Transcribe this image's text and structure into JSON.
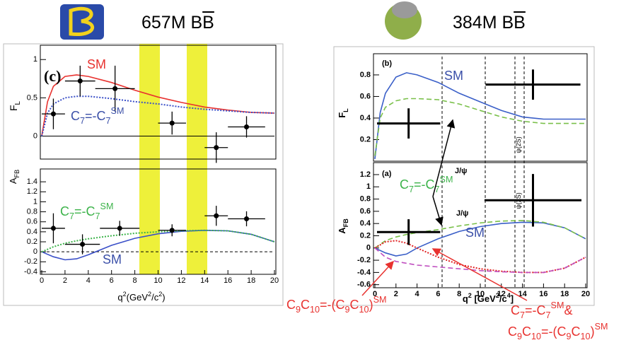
{
  "header": {
    "left": [
      "657M B",
      "B"
    ],
    "right": [
      "384M B",
      "B"
    ]
  },
  "chart_data": [
    {
      "type": "line",
      "label": "(c)",
      "ylabel": [
        "F",
        "L"
      ],
      "xlim": [
        0,
        20
      ],
      "ylim": [
        -0.3,
        1.15
      ],
      "yticks": [
        0,
        0.5,
        1
      ],
      "series": [
        {
          "color": "#e8322f",
          "style": "solid",
          "x": [
            0,
            0.5,
            1,
            2,
            3,
            4,
            6,
            8,
            10,
            12,
            14,
            16,
            18,
            20
          ],
          "values": [
            0,
            0.45,
            0.65,
            0.78,
            0.8,
            0.78,
            0.7,
            0.6,
            0.51,
            0.44,
            0.38,
            0.34,
            0.31,
            0.3
          ]
        },
        {
          "color": "#3a4fc8",
          "style": "dotted",
          "x": [
            0,
            0.5,
            1,
            2,
            3,
            4,
            6,
            8,
            10,
            12,
            14,
            16,
            18,
            20
          ],
          "values": [
            0,
            0.3,
            0.42,
            0.5,
            0.52,
            0.52,
            0.49,
            0.45,
            0.42,
            0.38,
            0.35,
            0.33,
            0.31,
            0.3
          ]
        }
      ],
      "points": {
        "marker": "circle",
        "x": [
          1,
          3.3,
          6.3,
          11.2,
          15,
          17.6
        ],
        "values": [
          0.29,
          0.72,
          0.62,
          0.17,
          -0.15,
          0.12
        ],
        "xerr": [
          1,
          1.3,
          1.7,
          1.2,
          1,
          1.6
        ],
        "yerr": [
          0.2,
          0.2,
          0.3,
          0.15,
          0.2,
          0.14
        ]
      },
      "annotations": [
        {
          "parts": [
            "SM"
          ],
          "color": "#e8322f"
        },
        {
          "parts": [
            "C",
            "7",
            "=-C",
            "7",
            "SM"
          ],
          "color": "#3a4fa8"
        }
      ]
    },
    {
      "type": "line",
      "ylabel": [
        "A",
        "FB"
      ],
      "xlabel": [
        "q",
        "2",
        "(GeV",
        "2",
        "/c",
        "2",
        ")"
      ],
      "xlim": [
        0,
        20
      ],
      "ylim": [
        -0.45,
        1.6
      ],
      "xticks": [
        0,
        2,
        4,
        6,
        8,
        10,
        12,
        14,
        16,
        18,
        20
      ],
      "yticks": [
        -0.4,
        -0.2,
        0,
        0.2,
        0.4,
        0.6,
        0.8,
        1,
        1.2,
        1.4
      ],
      "series": [
        {
          "color": "#3a4fc8",
          "style": "solid",
          "x": [
            0,
            1,
            2,
            3,
            4,
            6,
            8,
            10,
            12,
            14,
            16,
            18,
            20
          ],
          "values": [
            0,
            -0.1,
            -0.16,
            -0.14,
            -0.06,
            0.13,
            0.27,
            0.36,
            0.41,
            0.43,
            0.42,
            0.35,
            0.2
          ]
        },
        {
          "color": "#3cb34a",
          "style": "dotted",
          "x": [
            0,
            1,
            2,
            3,
            4,
            6,
            8,
            10,
            12,
            14,
            16,
            18,
            20
          ],
          "values": [
            0,
            0.1,
            0.17,
            0.22,
            0.26,
            0.32,
            0.37,
            0.4,
            0.42,
            0.43,
            0.42,
            0.35,
            0.2
          ]
        }
      ],
      "points": {
        "marker": "circle",
        "x": [
          1,
          3.5,
          6.7,
          11.2,
          15,
          17.6
        ],
        "values": [
          0.47,
          0.15,
          0.47,
          0.43,
          0.72,
          0.66
        ],
        "xerr": [
          1,
          1.5,
          1.7,
          1.2,
          1,
          1.6
        ],
        "yerr": [
          0.3,
          0.2,
          0.15,
          0.12,
          0.2,
          0.15
        ]
      },
      "annotations": [
        {
          "parts": [
            "C",
            "7",
            "=-C",
            "7",
            "SM"
          ],
          "color": "#3cb34a"
        },
        {
          "parts": [
            "SM"
          ],
          "color": "#3a4fa8"
        }
      ]
    },
    {
      "type": "line",
      "label": "(b)",
      "ylabel": [
        "F",
        "L"
      ],
      "xlim": [
        0,
        20
      ],
      "ylim": [
        0,
        0.97
      ],
      "yticks": [
        0.2,
        0.4,
        0.6,
        0.8
      ],
      "series": [
        {
          "color": "#3a5fc8",
          "style": "solid",
          "x": [
            0,
            0.5,
            1,
            2,
            3,
            4,
            6,
            8,
            10,
            12,
            14,
            16,
            18,
            20
          ],
          "values": [
            0.02,
            0.45,
            0.63,
            0.78,
            0.82,
            0.8,
            0.73,
            0.63,
            0.55,
            0.47,
            0.41,
            0.39,
            0.39,
            0.39
          ]
        },
        {
          "color": "#7ac04a",
          "style": "dashed",
          "x": [
            0,
            0.5,
            1,
            2,
            3,
            4,
            6,
            8,
            10,
            12,
            14,
            16,
            18,
            20
          ],
          "values": [
            0.05,
            0.4,
            0.5,
            0.56,
            0.58,
            0.58,
            0.57,
            0.53,
            0.47,
            0.41,
            0.37,
            0.35,
            0.35,
            0.35
          ]
        }
      ],
      "points": {
        "marker": "none",
        "x": [
          3.2,
          15
        ],
        "values": [
          0.35,
          0.71
        ],
        "xerr": [
          3,
          4.5
        ],
        "yerr": [
          0.14,
          0.14
        ]
      },
      "annotations": [
        {
          "parts": [
            "SM"
          ],
          "color": "#3a4fa8"
        },
        {
          "parts": [
            "J/ψ"
          ],
          "color": "#000000"
        },
        {
          "parts": [
            "ψ(2S)"
          ],
          "color": "#000000"
        }
      ]
    },
    {
      "type": "line",
      "label": "(a)",
      "ylabel": [
        "A",
        "FB"
      ],
      "xlabel": [
        "q",
        "2",
        " [GeV",
        "2",
        "/c",
        "4",
        "]"
      ],
      "xlim": [
        0,
        20
      ],
      "ylim": [
        -0.65,
        1.35
      ],
      "xticks": [
        0,
        2,
        4,
        6,
        8,
        10,
        12,
        14,
        16,
        18,
        20
      ],
      "yticks": [
        -0.6,
        -0.4,
        -0.2,
        0,
        0.2,
        0.4,
        0.6,
        0.8,
        1,
        1.2
      ],
      "series": [
        {
          "color": "#3a5fc8",
          "style": "solid",
          "x": [
            0,
            1,
            2,
            3,
            4,
            6,
            8,
            10,
            12,
            14,
            16,
            18,
            20
          ],
          "values": [
            0,
            -0.08,
            -0.13,
            -0.1,
            0,
            0.15,
            0.27,
            0.35,
            0.4,
            0.42,
            0.41,
            0.33,
            0.15
          ]
        },
        {
          "color": "#7ac04a",
          "style": "dashed",
          "x": [
            0,
            1,
            2,
            3,
            4,
            6,
            8,
            10,
            12,
            14,
            16,
            18,
            20
          ],
          "values": [
            0,
            0.12,
            0.18,
            0.22,
            0.25,
            0.3,
            0.36,
            0.41,
            0.44,
            0.45,
            0.42,
            0.33,
            0.15
          ]
        },
        {
          "color": "#e02020",
          "style": "dotted",
          "x": [
            0,
            1,
            2,
            3,
            4,
            6,
            8,
            10,
            12,
            14,
            16,
            18,
            20
          ],
          "values": [
            0,
            0.1,
            0.12,
            0.08,
            0,
            -0.15,
            -0.27,
            -0.34,
            -0.38,
            -0.4,
            -0.4,
            -0.33,
            -0.15
          ]
        },
        {
          "color": "#c050c0",
          "style": "dashed",
          "x": [
            0,
            1,
            2,
            3,
            4,
            6,
            8,
            10,
            12,
            14,
            16,
            18,
            20
          ],
          "values": [
            0,
            -0.15,
            -0.22,
            -0.25,
            -0.28,
            -0.31,
            -0.34,
            -0.37,
            -0.39,
            -0.4,
            -0.4,
            -0.33,
            -0.15
          ]
        }
      ],
      "points": {
        "marker": "none",
        "x": [
          3.2,
          15
        ],
        "values": [
          0.26,
          0.78
        ],
        "xerr": [
          3,
          4.6
        ],
        "yerr": [
          0.21,
          0.43
        ]
      },
      "annotations": [
        {
          "parts": [
            "C",
            "7",
            "=-C",
            "7",
            "SM"
          ],
          "color": "#3cb34a"
        },
        {
          "parts": [
            "J/ψ"
          ],
          "color": "#000000"
        },
        {
          "parts": [
            "ψ(2S)"
          ],
          "color": "#000000"
        },
        {
          "parts": [
            "SM"
          ],
          "color": "#3a4fa8"
        }
      ]
    }
  ],
  "notes": [
    {
      "parts": [
        "C",
        "9",
        "C",
        "10",
        "=-(C",
        "9",
        "C",
        "10",
        ")",
        "SM"
      ],
      "color": "#e8322f"
    },
    {
      "parts": [
        "C",
        "7",
        "=-C",
        "7",
        "SM",
        "&"
      ],
      "color": "#e8322f"
    },
    {
      "parts": [
        "C",
        "9",
        "C",
        "10",
        "=-(C",
        "9",
        "C",
        "10",
        ")",
        "SM"
      ],
      "color": "#e8322f"
    }
  ]
}
